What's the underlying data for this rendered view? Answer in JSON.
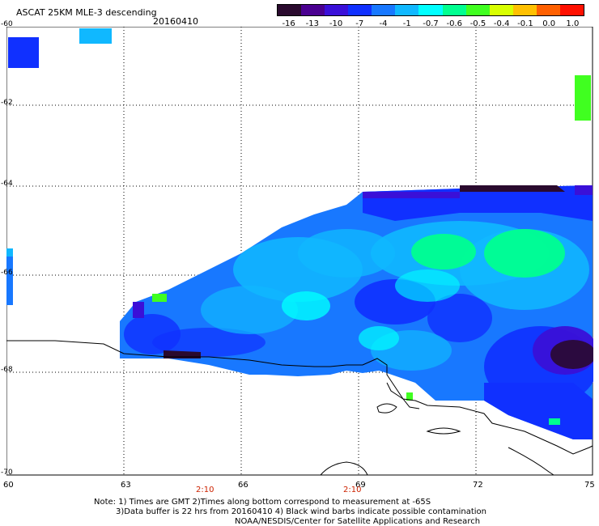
{
  "header": {
    "title": "ASCAT 25KM MLE-3 descending",
    "date": "20160410"
  },
  "colorbar": {
    "labels": [
      "-16",
      "-13",
      "-10",
      "-7",
      "-4",
      "-1",
      "-0.7",
      "-0.6",
      "-0.5",
      "-0.4",
      "-0.1",
      "0.0",
      "1.0"
    ],
    "colors": [
      "#2a0a2e",
      "#4a0090",
      "#3a10d8",
      "#1030ff",
      "#1878ff",
      "#10b8ff",
      "#00ffff",
      "#00ff90",
      "#40ff20",
      "#d8ff00",
      "#ffc000",
      "#ff6000",
      "#ff1000"
    ]
  },
  "axes": {
    "lat_labels": [
      "-60",
      "-62",
      "-64",
      "-66",
      "-68",
      "-70"
    ],
    "lon_labels": [
      "60",
      "63",
      "66",
      "69",
      "72",
      "75"
    ],
    "time_labels": [
      "2:10",
      "2:10"
    ]
  },
  "notes": {
    "line1": "Note: 1) Times are GMT 2)Times along bottom correspond to measurement at -65S",
    "line2": "3)Data buffer is 22 hrs from 20160410 4) Black wind barbs indicate possible contamination",
    "line3": "NOAA/NESDIS/Center for Satellite Applications and Research"
  },
  "map_colors": {
    "deep_blue": "#1030ff",
    "mid_blue": "#1878ff",
    "light_blue": "#10b8ff",
    "cyan": "#00ffff",
    "green": "#00ff90",
    "bright_green": "#40ff20",
    "purple": "#3a10d8",
    "dark_purple": "#2a0a2e"
  }
}
